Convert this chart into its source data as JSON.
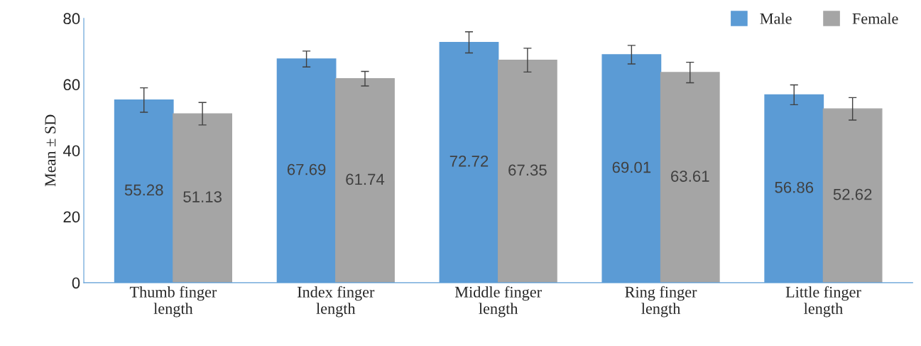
{
  "chart_data": {
    "type": "bar",
    "ylabel": "Mean ± SD",
    "categories": [
      "Thumb finger\nlength",
      "Index finger\nlength",
      "Middle finger\nlength",
      "Ring finger\nlength",
      "Little finger\nlength"
    ],
    "series": [
      {
        "name": "Male",
        "color": "#5b9bd5",
        "values": [
          55.28,
          67.69,
          72.72,
          69.01,
          56.86
        ],
        "errors": [
          3.7,
          2.4,
          3.2,
          2.8,
          3.0
        ]
      },
      {
        "name": "Female",
        "color": "#a5a5a5",
        "values": [
          51.13,
          61.74,
          67.35,
          63.61,
          52.62
        ],
        "errors": [
          3.4,
          2.2,
          3.6,
          3.1,
          3.4
        ]
      }
    ],
    "ylim": [
      0,
      80
    ],
    "yticks": [
      0,
      20,
      40,
      60,
      80
    ],
    "data_labels": true,
    "grid": false,
    "legend": "top right"
  }
}
